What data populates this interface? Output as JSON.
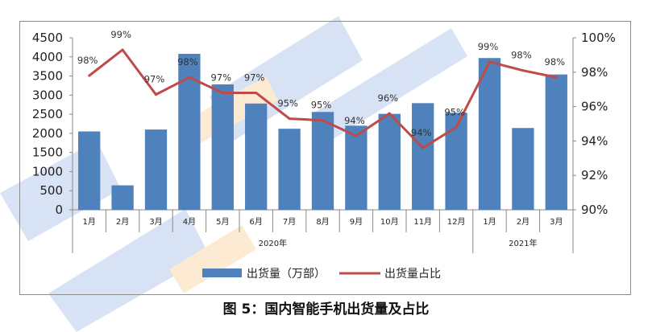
{
  "chart_data": {
    "type": "bar+line",
    "caption": "图 5：国内智能手机出货量及占比",
    "categories": [
      "1月",
      "2月",
      "3月",
      "4月",
      "5月",
      "6月",
      "7月",
      "8月",
      "9月",
      "10月",
      "11月",
      "12月",
      "1月",
      "2月",
      "3月"
    ],
    "year_groups": [
      {
        "label": "2020年",
        "count": 12
      },
      {
        "label": "2021年",
        "count": 3
      }
    ],
    "series": [
      {
        "name": "出货量（万部）",
        "type": "bar",
        "axis": "left",
        "color": "#4f81bd",
        "values": [
          2050,
          640,
          2100,
          4080,
          3280,
          2780,
          2120,
          2560,
          2200,
          2510,
          2790,
          2540,
          3970,
          2140,
          3540
        ]
      },
      {
        "name": "出货量占比",
        "type": "line",
        "axis": "right",
        "color": "#be4b48",
        "values": [
          97.8,
          99.3,
          96.7,
          97.7,
          96.8,
          96.8,
          95.3,
          95.2,
          94.3,
          95.6,
          93.6,
          94.8,
          98.6,
          98.1,
          97.7
        ],
        "labels": [
          "98%",
          "99%",
          "97%",
          "98%",
          "97%",
          "97%",
          "95%",
          "95%",
          "94%",
          "96%",
          "94%",
          "95%",
          "99%",
          "98%",
          "98%"
        ]
      }
    ],
    "y_left": {
      "min": 0,
      "max": 4500,
      "ticks": [
        "0",
        "500",
        "1000",
        "1500",
        "2000",
        "2500",
        "3000",
        "3500",
        "4000",
        "4500"
      ]
    },
    "y_right": {
      "min": 90,
      "max": 100,
      "ticks": [
        "90%",
        "92%",
        "94%",
        "96%",
        "98%",
        "100%"
      ]
    },
    "legend_position": "bottom",
    "grid": false
  }
}
